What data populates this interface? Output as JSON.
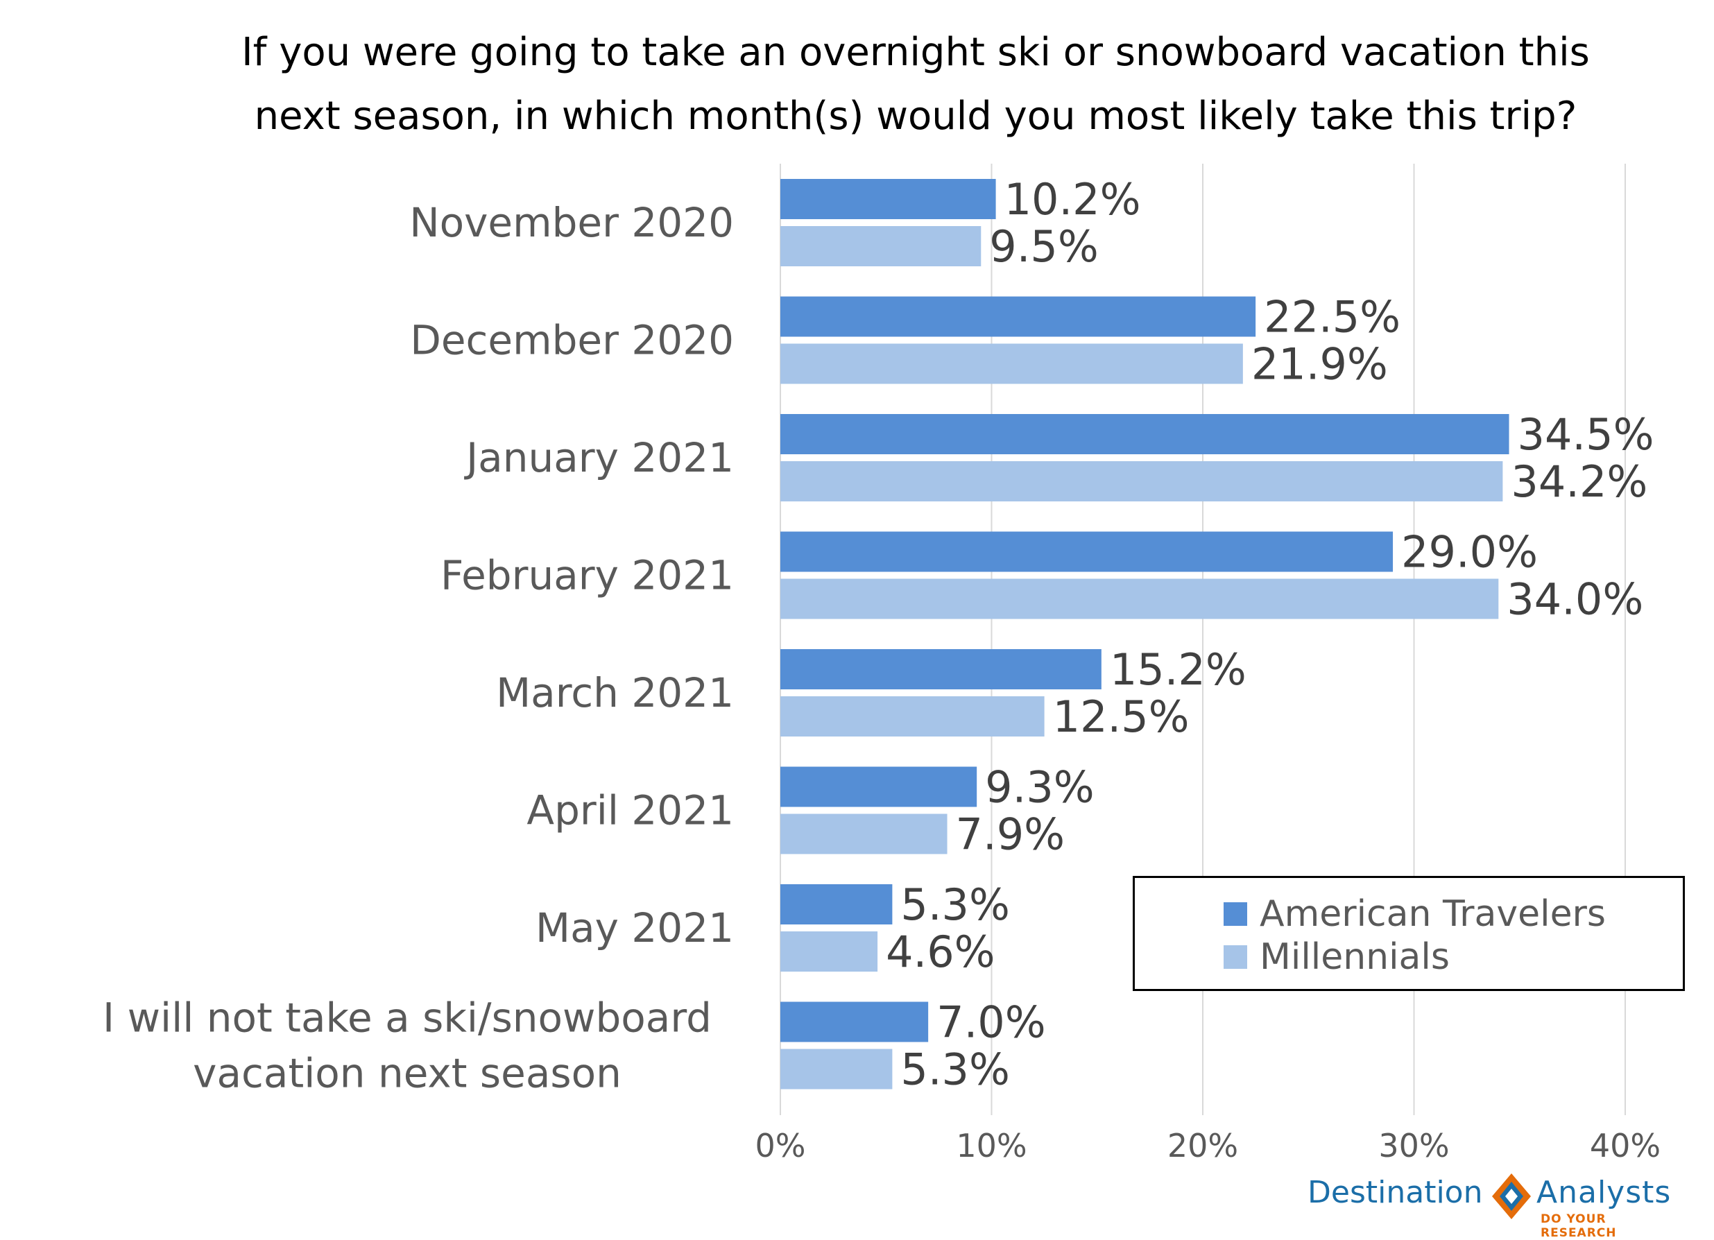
{
  "title_lines": [
    "If you were going to take an overnight ski or snowboard vacation this",
    "next season, in which month(s) would you most likely take this trip?"
  ],
  "chart_data": {
    "type": "bar",
    "orientation": "horizontal",
    "title": "If you were going to take an overnight ski or snowboard vacation this next season, in which month(s) would you most likely take this trip?",
    "categories": [
      [
        "November 2020"
      ],
      [
        "December 2020"
      ],
      [
        "January 2021"
      ],
      [
        "February 2021"
      ],
      [
        "March 2021"
      ],
      [
        "April 2021"
      ],
      [
        "May 2021"
      ],
      [
        "I will not take a ski/snowboard",
        "vacation next season"
      ]
    ],
    "series": [
      {
        "name": "American Travelers",
        "color": "#558ed5",
        "values": [
          10.2,
          22.5,
          34.5,
          29.0,
          15.2,
          9.3,
          5.3,
          7.0
        ]
      },
      {
        "name": "Millennials",
        "color": "#a6c4e8",
        "values": [
          9.5,
          21.9,
          34.2,
          34.0,
          12.5,
          7.9,
          4.6,
          5.3
        ]
      }
    ],
    "value_axis": {
      "ticks": [
        0,
        10,
        20,
        30,
        40
      ],
      "tick_labels": [
        "0%",
        "10%",
        "20%",
        "30%",
        "40%"
      ],
      "range": [
        0,
        40
      ]
    },
    "grid": true,
    "legend_position": "bottom-right"
  },
  "legend": {
    "items": [
      "American Travelers",
      "Millennials"
    ]
  },
  "logo": {
    "left": "Destination",
    "right": "Analysts",
    "tagline": "DO YOUR RESEARCH",
    "colors": {
      "blue": "#1b6ea8",
      "orange": "#e46c0a"
    }
  }
}
